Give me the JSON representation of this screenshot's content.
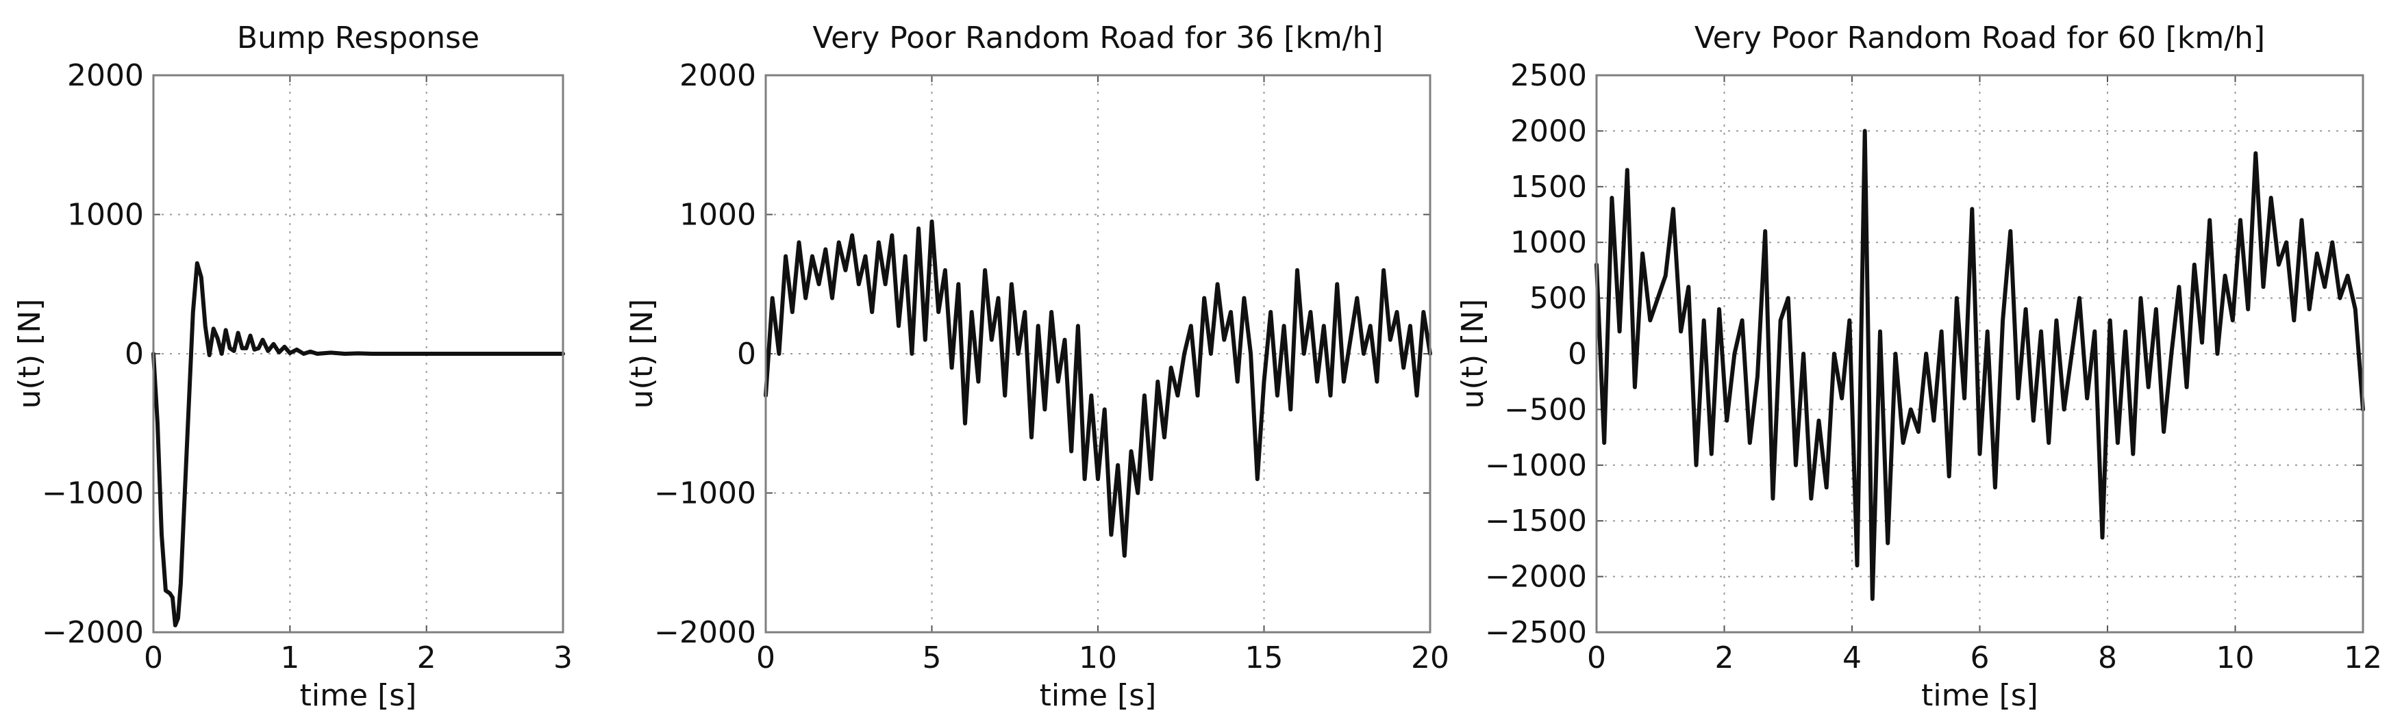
{
  "chart_data": [
    {
      "type": "line",
      "title": "Bump Response",
      "xlabel": "time [s]",
      "ylabel": "u(t) [N]",
      "xlim": [
        0,
        3
      ],
      "ylim": [
        -2000,
        2000
      ],
      "xticks": [
        0,
        1,
        2,
        3
      ],
      "yticks": [
        -2000,
        -1000,
        0,
        1000,
        2000
      ],
      "xtick_labels": [
        "0",
        "1",
        "2",
        "3"
      ],
      "ytick_labels": [
        "−2000",
        "−1000",
        "0",
        "1000",
        "2000"
      ],
      "grid": true,
      "series": [
        {
          "x": [
            0,
            0.03,
            0.06,
            0.09,
            0.12,
            0.14,
            0.16,
            0.18,
            0.2,
            0.23,
            0.26,
            0.29,
            0.32,
            0.35,
            0.38,
            0.41,
            0.44,
            0.47,
            0.5,
            0.53,
            0.56,
            0.59,
            0.62,
            0.65,
            0.68,
            0.71,
            0.74,
            0.77,
            0.8,
            0.84,
            0.88,
            0.92,
            0.96,
            1.0,
            1.05,
            1.1,
            1.15,
            1.2,
            1.3,
            1.4,
            1.5,
            1.6,
            1.8,
            2.0,
            2.5,
            3.0
          ],
          "y": [
            0,
            -500,
            -1300,
            -1700,
            -1720,
            -1750,
            -1950,
            -1900,
            -1650,
            -1000,
            -350,
            300,
            650,
            550,
            200,
            -10,
            180,
            110,
            0,
            170,
            40,
            20,
            150,
            40,
            40,
            130,
            30,
            40,
            100,
            20,
            70,
            10,
            50,
            5,
            30,
            0,
            15,
            0,
            8,
            0,
            3,
            0,
            0,
            0,
            0,
            0
          ]
        }
      ]
    },
    {
      "type": "line",
      "title": "Very Poor Random Road for 36 [km/h]",
      "xlabel": "time [s]",
      "ylabel": "u(t) [N]",
      "xlim": [
        0,
        20
      ],
      "ylim": [
        -2000,
        2000
      ],
      "xticks": [
        0,
        5,
        10,
        15,
        20
      ],
      "yticks": [
        -2000,
        -1000,
        0,
        1000,
        2000
      ],
      "xtick_labels": [
        "0",
        "5",
        "10",
        "15",
        "20"
      ],
      "ytick_labels": [
        "−2000",
        "−1000",
        "0",
        "1000",
        "2000"
      ],
      "grid": true,
      "series": [
        {
          "x": [
            0,
            0.2,
            0.4,
            0.6,
            0.8,
            1.0,
            1.2,
            1.4,
            1.6,
            1.8,
            2.0,
            2.2,
            2.4,
            2.6,
            2.8,
            3.0,
            3.2,
            3.4,
            3.6,
            3.8,
            4.0,
            4.2,
            4.4,
            4.6,
            4.8,
            5.0,
            5.2,
            5.4,
            5.6,
            5.8,
            6.0,
            6.2,
            6.4,
            6.6,
            6.8,
            7.0,
            7.2,
            7.4,
            7.6,
            7.8,
            8.0,
            8.2,
            8.4,
            8.6,
            8.8,
            9.0,
            9.2,
            9.4,
            9.6,
            9.8,
            10.0,
            10.2,
            10.4,
            10.6,
            10.8,
            11.0,
            11.2,
            11.4,
            11.6,
            11.8,
            12.0,
            12.2,
            12.4,
            12.6,
            12.8,
            13.0,
            13.2,
            13.4,
            13.6,
            13.8,
            14.0,
            14.2,
            14.4,
            14.6,
            14.8,
            15.0,
            15.2,
            15.4,
            15.6,
            15.8,
            16.0,
            16.2,
            16.4,
            16.6,
            16.8,
            17.0,
            17.2,
            17.4,
            17.6,
            17.8,
            18.0,
            18.2,
            18.4,
            18.6,
            18.8,
            19.0,
            19.2,
            19.4,
            19.6,
            19.8,
            20.0
          ],
          "y": [
            -300,
            400,
            0,
            700,
            300,
            800,
            400,
            700,
            500,
            750,
            400,
            800,
            600,
            850,
            500,
            700,
            300,
            800,
            500,
            850,
            200,
            700,
            0,
            900,
            100,
            950,
            300,
            600,
            -100,
            500,
            -500,
            300,
            -200,
            600,
            100,
            400,
            -300,
            500,
            0,
            300,
            -600,
            200,
            -400,
            300,
            -200,
            100,
            -700,
            200,
            -900,
            -300,
            -900,
            -400,
            -1300,
            -800,
            -1450,
            -700,
            -1000,
            -300,
            -900,
            -200,
            -600,
            -100,
            -300,
            0,
            200,
            -300,
            400,
            0,
            500,
            100,
            300,
            -200,
            400,
            0,
            -900,
            -200,
            300,
            -300,
            200,
            -400,
            600,
            0,
            300,
            -200,
            200,
            -300,
            500,
            -200,
            100,
            400,
            0,
            200,
            -200,
            600,
            100,
            300,
            -100,
            200,
            -300,
            300,
            0
          ]
        }
      ]
    },
    {
      "type": "line",
      "title": "Very Poor Random Road for 60 [km/h]",
      "xlabel": "time [s]",
      "ylabel": "u(t) [N]",
      "xlim": [
        0,
        12
      ],
      "ylim": [
        -2500,
        2500
      ],
      "xticks": [
        0,
        2,
        4,
        6,
        8,
        10,
        12
      ],
      "yticks": [
        -2500,
        -2000,
        -1500,
        -1000,
        -500,
        0,
        500,
        1000,
        1500,
        2000,
        2500
      ],
      "xtick_labels": [
        "0",
        "2",
        "4",
        "6",
        "8",
        "10",
        "12"
      ],
      "ytick_labels": [
        "−2500",
        "−2000",
        "−1500",
        "−1000",
        "−500",
        "0",
        "500",
        "1000",
        "1500",
        "2000",
        "2500"
      ],
      "grid": true,
      "series": [
        {
          "x": [
            0,
            0.12,
            0.24,
            0.36,
            0.48,
            0.6,
            0.72,
            0.84,
            0.96,
            1.08,
            1.2,
            1.32,
            1.44,
            1.56,
            1.68,
            1.8,
            1.92,
            2.04,
            2.16,
            2.28,
            2.4,
            2.52,
            2.64,
            2.76,
            2.88,
            3.0,
            3.12,
            3.24,
            3.36,
            3.48,
            3.6,
            3.72,
            3.84,
            3.96,
            4.08,
            4.2,
            4.32,
            4.44,
            4.56,
            4.68,
            4.8,
            4.92,
            5.04,
            5.16,
            5.28,
            5.4,
            5.52,
            5.64,
            5.76,
            5.88,
            6.0,
            6.12,
            6.24,
            6.36,
            6.48,
            6.6,
            6.72,
            6.84,
            6.96,
            7.08,
            7.2,
            7.32,
            7.44,
            7.56,
            7.68,
            7.8,
            7.92,
            8.04,
            8.16,
            8.28,
            8.4,
            8.52,
            8.64,
            8.76,
            8.88,
            9.0,
            9.12,
            9.24,
            9.36,
            9.48,
            9.6,
            9.72,
            9.84,
            9.96,
            10.08,
            10.2,
            10.32,
            10.44,
            10.56,
            10.68,
            10.8,
            10.92,
            11.04,
            11.16,
            11.28,
            11.4,
            11.52,
            11.64,
            11.76,
            11.88,
            12.0
          ],
          "y": [
            800,
            -800,
            1400,
            200,
            1650,
            -300,
            900,
            300,
            500,
            700,
            1300,
            200,
            600,
            -1000,
            300,
            -900,
            400,
            -600,
            0,
            300,
            -800,
            -200,
            1100,
            -1300,
            300,
            500,
            -1000,
            0,
            -1300,
            -600,
            -1200,
            0,
            -400,
            300,
            -1900,
            2000,
            -2200,
            200,
            -1700,
            0,
            -800,
            -500,
            -700,
            0,
            -600,
            200,
            -1100,
            500,
            -400,
            1300,
            -900,
            200,
            -1200,
            300,
            1100,
            -400,
            400,
            -600,
            200,
            -800,
            300,
            -500,
            0,
            500,
            -400,
            200,
            -1650,
            300,
            -800,
            200,
            -900,
            500,
            -300,
            400,
            -700,
            0,
            600,
            -300,
            800,
            100,
            1200,
            0,
            700,
            300,
            1200,
            400,
            1800,
            600,
            1400,
            800,
            1000,
            300,
            1200,
            400,
            900,
            600,
            1000,
            500,
            700,
            400,
            -500
          ]
        }
      ]
    }
  ]
}
